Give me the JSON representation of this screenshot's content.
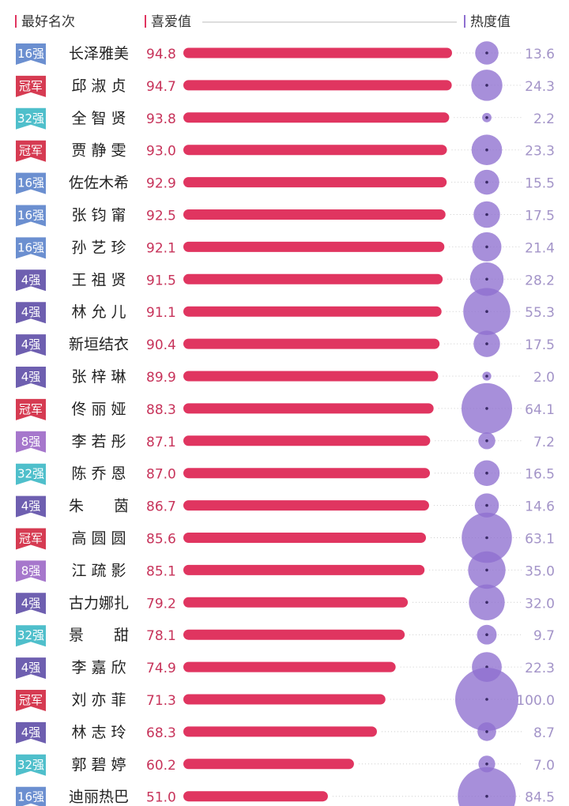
{
  "header": {
    "rank_label": "最好名次",
    "score_label": "喜爱值",
    "heat_label": "热度值"
  },
  "colors": {
    "bar": "#e03560",
    "score_text": "#c7335a",
    "bubble": "#8e6fd0",
    "heat_text": "#a394c8",
    "name_text": "#222222",
    "header_text": "#333333",
    "champion": "#d63b52",
    "top4": "#6e5fb0",
    "top8": "#a677cc",
    "top16": "#6b8fd0",
    "top32": "#4fbfcb"
  },
  "chart_data": {
    "type": "bar",
    "title": "",
    "xlabel": "",
    "ylabel": "",
    "xlim": [
      0,
      100
    ],
    "rows": [
      {
        "rank": "16强",
        "name": "长泽雅美",
        "score": 94.8,
        "heat": 13.6
      },
      {
        "rank": "冠军",
        "name": "邱 淑 贞",
        "score": 94.7,
        "heat": 24.3
      },
      {
        "rank": "32强",
        "name": "全 智 贤",
        "score": 93.8,
        "heat": 2.2
      },
      {
        "rank": "冠军",
        "name": "贾 静 雯",
        "score": 93.0,
        "heat": 23.3
      },
      {
        "rank": "16强",
        "name": "佐佐木希",
        "score": 92.9,
        "heat": 15.5
      },
      {
        "rank": "16强",
        "name": "张 钧 甯",
        "score": 92.5,
        "heat": 17.5
      },
      {
        "rank": "16强",
        "name": "孙 艺 珍",
        "score": 92.1,
        "heat": 21.4
      },
      {
        "rank": "4强",
        "name": "王 祖 贤",
        "score": 91.5,
        "heat": 28.2
      },
      {
        "rank": "4强",
        "name": "林 允 儿",
        "score": 91.1,
        "heat": 55.3
      },
      {
        "rank": "4强",
        "name": "新垣结衣",
        "score": 90.4,
        "heat": 17.5
      },
      {
        "rank": "4强",
        "name": "张 梓 琳",
        "score": 89.9,
        "heat": 2.0
      },
      {
        "rank": "冠军",
        "name": "佟 丽 娅",
        "score": 88.3,
        "heat": 64.1
      },
      {
        "rank": "8强",
        "name": "李 若 彤",
        "score": 87.1,
        "heat": 7.2
      },
      {
        "rank": "32强",
        "name": "陈 乔 恩",
        "score": 87.0,
        "heat": 16.5
      },
      {
        "rank": "4强",
        "name": "朱　　茵",
        "score": 86.7,
        "heat": 14.6
      },
      {
        "rank": "冠军",
        "name": "高 圆 圆",
        "score": 85.6,
        "heat": 63.1
      },
      {
        "rank": "8强",
        "name": "江 疏 影",
        "score": 85.1,
        "heat": 35.0
      },
      {
        "rank": "4强",
        "name": "古力娜扎",
        "score": 79.2,
        "heat": 32.0
      },
      {
        "rank": "32强",
        "name": "景　　甜",
        "score": 78.1,
        "heat": 9.7
      },
      {
        "rank": "4强",
        "name": "李 嘉 欣",
        "score": 74.9,
        "heat": 22.3
      },
      {
        "rank": "冠军",
        "name": "刘 亦 菲",
        "score": 71.3,
        "heat": 100.0
      },
      {
        "rank": "4强",
        "name": "林 志 玲",
        "score": 68.3,
        "heat": 8.7
      },
      {
        "rank": "32强",
        "name": "郭 碧 婷",
        "score": 60.2,
        "heat": 7.0
      },
      {
        "rank": "16强",
        "name": "迪丽热巴",
        "score": 51.0,
        "heat": 84.5
      }
    ]
  }
}
